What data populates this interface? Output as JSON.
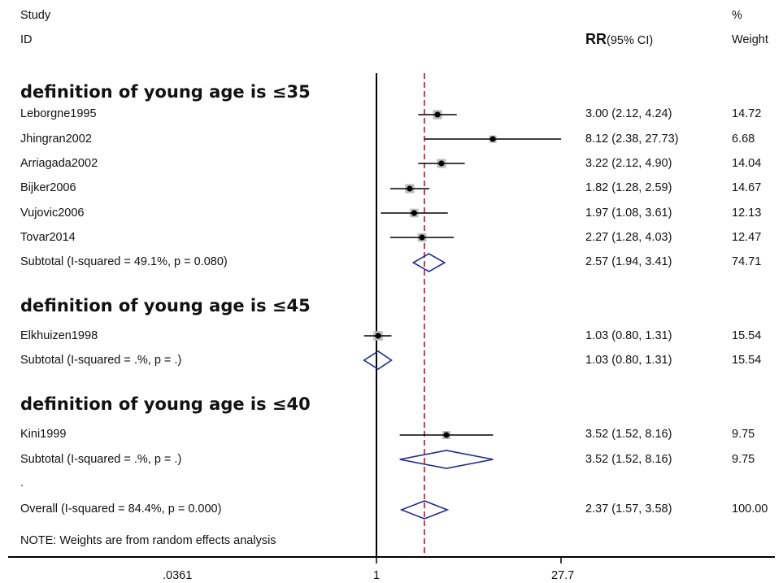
{
  "header": {
    "study_label": "Study",
    "id_label": "ID",
    "effect_label": "RR",
    "ci_label": "(95% CI)",
    "pct_label": "%",
    "weight_label": "Weight"
  },
  "groups": [
    {
      "title": "definition of young age is ≤35"
    },
    {
      "title": "definition of young age is ≤45"
    },
    {
      "title": "definition of young age is ≤40"
    }
  ],
  "rows": [
    {
      "kind": "study",
      "label": "Leborgne1995",
      "rr": 3.0,
      "lo": 2.12,
      "hi": 4.24,
      "ci_text": "3.00 (2.12, 4.24)",
      "weight": "14.72"
    },
    {
      "kind": "study",
      "label": "Jhingran2002",
      "rr": 8.12,
      "lo": 2.38,
      "hi": 27.73,
      "ci_text": "8.12 (2.38, 27.73)",
      "weight": "6.68"
    },
    {
      "kind": "study",
      "label": "Arriagada2002",
      "rr": 3.22,
      "lo": 2.12,
      "hi": 4.9,
      "ci_text": "3.22 (2.12, 4.90)",
      "weight": "14.04"
    },
    {
      "kind": "study",
      "label": "Bijker2006",
      "rr": 1.82,
      "lo": 1.28,
      "hi": 2.59,
      "ci_text": "1.82 (1.28, 2.59)",
      "weight": "14.67"
    },
    {
      "kind": "study",
      "label": "Vujovic2006",
      "rr": 1.97,
      "lo": 1.08,
      "hi": 3.61,
      "ci_text": "1.97 (1.08, 3.61)",
      "weight": "12.13"
    },
    {
      "kind": "study",
      "label": "Tovar2014",
      "rr": 2.27,
      "lo": 1.28,
      "hi": 4.03,
      "ci_text": "2.27 (1.28, 4.03)",
      "weight": "12.47"
    },
    {
      "kind": "subtotal",
      "label": "Subtotal  (I-squared = 49.1%, p = 0.080)",
      "rr": 2.57,
      "lo": 1.94,
      "hi": 3.41,
      "ci_text": "2.57 (1.94, 3.41)",
      "weight": "74.71"
    },
    {
      "kind": "study",
      "label": "Elkhuizen1998",
      "rr": 1.03,
      "lo": 0.8,
      "hi": 1.31,
      "ci_text": "1.03 (0.80, 1.31)",
      "weight": "15.54"
    },
    {
      "kind": "subtotal",
      "label": "Subtotal  (I-squared = .%, p = .)",
      "rr": 1.03,
      "lo": 0.8,
      "hi": 1.31,
      "ci_text": "1.03 (0.80, 1.31)",
      "weight": "15.54"
    },
    {
      "kind": "study",
      "label": "Kini1999",
      "rr": 3.52,
      "lo": 1.52,
      "hi": 8.16,
      "ci_text": "3.52 (1.52, 8.16)",
      "weight": "9.75"
    },
    {
      "kind": "subtotal",
      "label": "Subtotal  (I-squared = .%, p = .)",
      "rr": 3.52,
      "lo": 1.52,
      "hi": 8.16,
      "ci_text": "3.52 (1.52, 8.16)",
      "weight": "9.75"
    },
    {
      "kind": "dot",
      "label": "."
    },
    {
      "kind": "overall",
      "label": "Overall  (I-squared = 84.4%, p = 0.000)",
      "rr": 2.37,
      "lo": 1.57,
      "hi": 3.58,
      "ci_text": "2.37 (1.57, 3.58)",
      "weight": "100.00"
    }
  ],
  "note": "NOTE: Weights are from random effects analysis",
  "chart_data": {
    "type": "scatter",
    "subtype": "forest plot",
    "x_scale": "log",
    "x_ticks": [
      {
        "value": 0.0361,
        "label": ".0361"
      },
      {
        "value": 1,
        "label": "1"
      },
      {
        "value": 27.7,
        "label": "27.7"
      }
    ],
    "null_line": 1,
    "reference_line": 2.37,
    "colors": {
      "ci_line": "#000000",
      "weight_box": "#bdbdbd",
      "diamond": "#1f2d8c",
      "reference_line": "#9b2335"
    }
  }
}
